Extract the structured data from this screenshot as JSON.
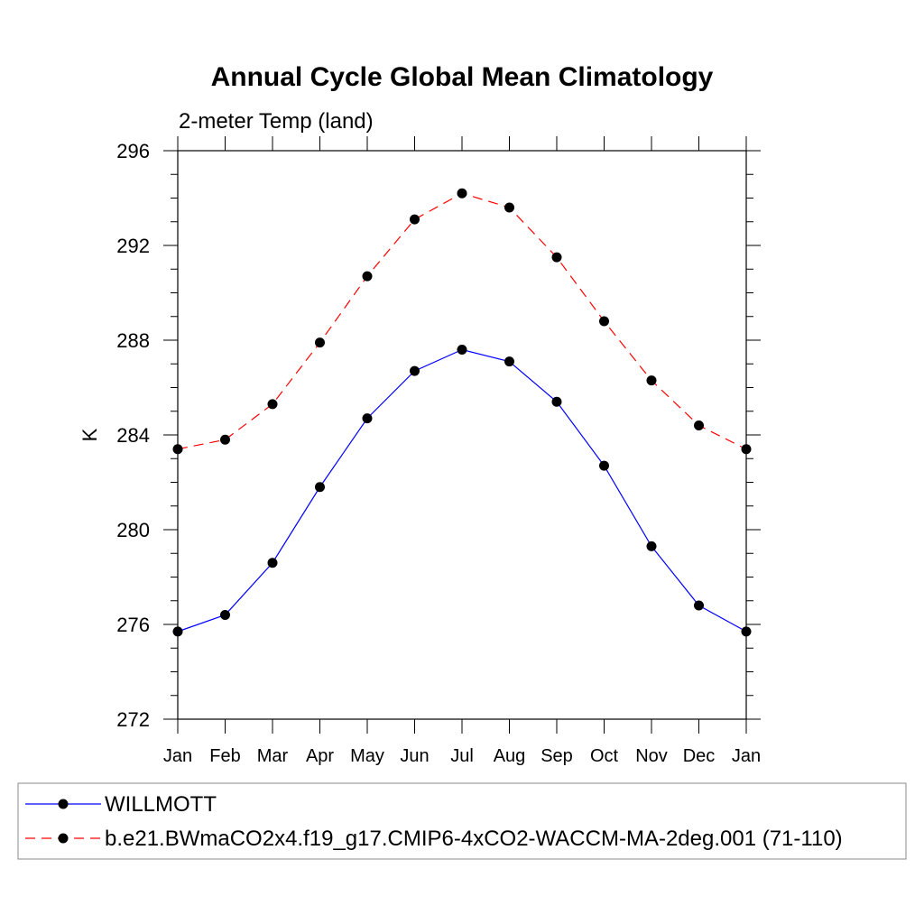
{
  "chart_data": {
    "type": "line",
    "title": "Annual Cycle Global Mean Climatology",
    "subtitle": "2-meter Temp (land)",
    "xlabel": "",
    "ylabel": "K",
    "categories": [
      "Jan",
      "Feb",
      "Mar",
      "Apr",
      "May",
      "Jun",
      "Jul",
      "Aug",
      "Sep",
      "Oct",
      "Nov",
      "Dec",
      "Jan"
    ],
    "ylim": [
      272,
      296
    ],
    "yticks": [
      272,
      276,
      280,
      284,
      288,
      292,
      296
    ],
    "yminor_step": 1,
    "grid": false,
    "legend_position": "bottom",
    "series": [
      {
        "name": "WILLMOTT",
        "color": "#0000ff",
        "dash": "solid",
        "values": [
          275.7,
          276.4,
          278.6,
          281.8,
          284.7,
          286.7,
          287.6,
          287.1,
          285.4,
          282.7,
          279.3,
          276.8,
          275.7
        ]
      },
      {
        "name": "b.e21.BWmaCO2x4.f19_g17.CMIP6-4xCO2-WACCM-MA-2deg.001 (71-110)",
        "color": "#ff0000",
        "dash": "dashed",
        "values": [
          283.4,
          283.8,
          285.3,
          287.9,
          290.7,
          293.1,
          294.2,
          293.6,
          291.5,
          288.8,
          286.3,
          284.4,
          283.4
        ]
      }
    ]
  }
}
